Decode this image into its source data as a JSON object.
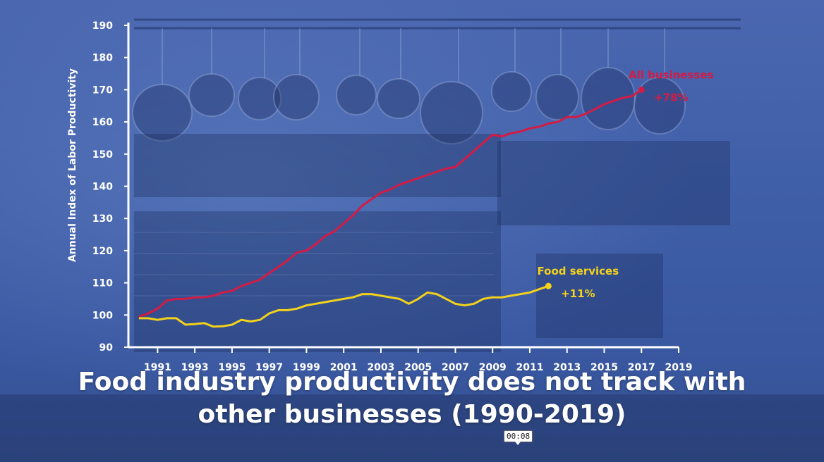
{
  "chart_data": {
    "type": "line",
    "title": "",
    "xlabel": "",
    "ylabel": "Annual Index of Labor Productivity",
    "xlim": [
      1990,
      2019
    ],
    "ylim": [
      90,
      190
    ],
    "yticks": [
      90,
      100,
      110,
      120,
      130,
      140,
      150,
      160,
      170,
      180,
      190
    ],
    "xticks": [
      1991,
      1993,
      1995,
      1997,
      1999,
      2001,
      2003,
      2005,
      2007,
      2009,
      2011,
      2013,
      2015,
      2017,
      2019
    ],
    "grid": false,
    "legend": "none",
    "series": [
      {
        "name": "All businesses",
        "change_label": "+78%",
        "color": "#d41b45",
        "points": [
          [
            1990,
            99.5
          ],
          [
            1990.5,
            100.5
          ],
          [
            1991,
            102
          ],
          [
            1991.5,
            104.5
          ],
          [
            1992,
            105
          ],
          [
            1992.5,
            105
          ],
          [
            1993,
            105.5
          ],
          [
            1993.5,
            105.5
          ],
          [
            1994,
            106
          ],
          [
            1994.5,
            107
          ],
          [
            1995,
            107.5
          ],
          [
            1995.5,
            109
          ],
          [
            1996,
            110
          ],
          [
            1996.5,
            111
          ],
          [
            1997,
            113
          ],
          [
            1997.5,
            115
          ],
          [
            1998,
            117
          ],
          [
            1998.5,
            119.5
          ],
          [
            1999,
            120
          ],
          [
            1999.5,
            122
          ],
          [
            2000,
            124.5
          ],
          [
            2000.5,
            126
          ],
          [
            2001,
            128.5
          ],
          [
            2001.5,
            131
          ],
          [
            2002,
            134
          ],
          [
            2002.5,
            136
          ],
          [
            2003,
            138
          ],
          [
            2003.5,
            139
          ],
          [
            2004,
            140.5
          ],
          [
            2004.5,
            141.5
          ],
          [
            2005,
            142.5
          ],
          [
            2005.5,
            143.5
          ],
          [
            2006,
            144.5
          ],
          [
            2006.5,
            145.5
          ],
          [
            2007,
            146
          ],
          [
            2007.5,
            148.5
          ],
          [
            2008,
            151
          ],
          [
            2008.5,
            153.5
          ],
          [
            2009,
            156
          ],
          [
            2009.5,
            155.5
          ],
          [
            2010,
            156.5
          ],
          [
            2010.5,
            157
          ],
          [
            2011,
            158
          ],
          [
            2011.5,
            158.5
          ],
          [
            2012,
            159.5
          ],
          [
            2012.5,
            160
          ],
          [
            2013,
            161.5
          ],
          [
            2013.5,
            161.5
          ],
          [
            2014,
            162.5
          ],
          [
            2014.5,
            164
          ],
          [
            2015,
            165.5
          ],
          [
            2015.5,
            166.5
          ],
          [
            2016,
            167.5
          ],
          [
            2016.5,
            168
          ],
          [
            2017,
            170
          ]
        ]
      },
      {
        "name": "Food services",
        "change_label": "+11%",
        "color": "#f3d21b",
        "points": [
          [
            1990,
            99
          ],
          [
            1990.5,
            99
          ],
          [
            1991,
            98.5
          ],
          [
            1991.5,
            99
          ],
          [
            1992,
            99
          ],
          [
            1992.5,
            97
          ],
          [
            1993,
            97.2
          ],
          [
            1993.5,
            97.5
          ],
          [
            1994,
            96.4
          ],
          [
            1994.5,
            96.5
          ],
          [
            1995,
            97
          ],
          [
            1995.5,
            98.5
          ],
          [
            1996,
            98
          ],
          [
            1996.5,
            98.5
          ],
          [
            1997,
            100.5
          ],
          [
            1997.5,
            101.5
          ],
          [
            1998,
            101.5
          ],
          [
            1998.5,
            102
          ],
          [
            1999,
            103
          ],
          [
            1999.5,
            103.5
          ],
          [
            2000,
            104
          ],
          [
            2000.5,
            104.5
          ],
          [
            2001,
            105
          ],
          [
            2001.5,
            105.5
          ],
          [
            2002,
            106.5
          ],
          [
            2002.5,
            106.5
          ],
          [
            2003,
            106
          ],
          [
            2003.5,
            105.5
          ],
          [
            2004,
            105
          ],
          [
            2004.5,
            103.5
          ],
          [
            2005,
            105
          ],
          [
            2005.5,
            107
          ],
          [
            2006,
            106.5
          ],
          [
            2006.5,
            105
          ],
          [
            2007,
            103.5
          ],
          [
            2007.5,
            103
          ],
          [
            2008,
            103.5
          ],
          [
            2008.5,
            105
          ],
          [
            2009,
            105.5
          ],
          [
            2009.5,
            105.5
          ],
          [
            2010,
            106
          ],
          [
            2010.5,
            106.5
          ],
          [
            2011,
            107
          ],
          [
            2011.5,
            108
          ],
          [
            2012,
            109
          ]
        ]
      }
    ]
  },
  "caption": {
    "line1": "Food industry productivity does not track with",
    "line2": "other businesses (1990-2019)"
  },
  "timestamp": "00:08"
}
